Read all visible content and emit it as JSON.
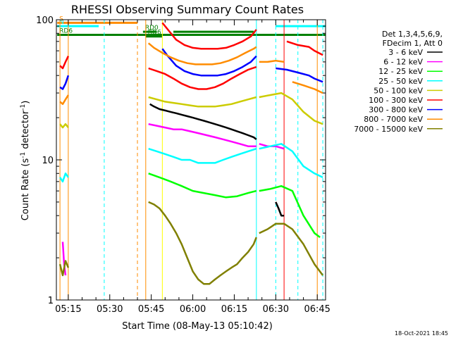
{
  "chart_data": {
    "type": "line",
    "title": "RHESSI Observing Summary Count Rates",
    "xlabel": "Start Time (08-May-13 05:10:42)",
    "ylabel": "Count Rate (s",
    "ylabel_sup": "-1",
    "ylabel_tail": " detector",
    "ylabel_close": ")",
    "timestamp": "18-Oct-2021 18:45",
    "y_scale": "log",
    "ylim": [
      1,
      100
    ],
    "xlim": [
      "05:10:42",
      "06:48:00"
    ],
    "x_ticks": [
      "05:15",
      "05:30",
      "05:45",
      "06:00",
      "06:15",
      "06:30",
      "06:45"
    ],
    "y_ticks": [
      "1",
      "10",
      "100"
    ],
    "legend": {
      "placement": "right",
      "header": [
        "Det 1,3,4,5,6,9,",
        "FDecim 1, Att 0"
      ]
    },
    "series": [
      {
        "name": "3 - 6 keV",
        "color": "#000000",
        "segments": [
          {
            "x": [
              "05:44:30",
              "05:46",
              "05:48",
              "05:50",
              "05:52",
              "05:54",
              "05:56",
              "05:58",
              "06:00",
              "06:02",
              "06:04",
              "06:06",
              "06:08",
              "06:10",
              "06:12",
              "06:14",
              "06:16",
              "06:18",
              "06:20",
              "06:22",
              "06:23"
            ],
            "y": [
              25,
              24,
              23,
              22.5,
              22,
              21.5,
              21,
              20.5,
              20,
              19.5,
              19,
              18.5,
              18,
              17.5,
              17,
              16.5,
              16,
              15.5,
              15,
              14.5,
              14
            ]
          },
          {
            "x": [
              "06:30",
              "06:31",
              "06:32",
              "06:33"
            ],
            "y": [
              5,
              4.5,
              4,
              4
            ]
          }
        ]
      },
      {
        "name": "6 - 12 keV",
        "color": "#ff00ff",
        "segments": [
          {
            "x": [
              "05:13",
              "05:13:30",
              "05:14"
            ],
            "y": [
              2.6,
              1.8,
              1.5
            ]
          },
          {
            "x": [
              "05:44",
              "05:47",
              "05:50",
              "05:53",
              "05:56",
              "05:59",
              "06:02",
              "06:05",
              "06:08",
              "06:11",
              "06:14",
              "06:17",
              "06:20",
              "06:23"
            ],
            "y": [
              18,
              17.5,
              17,
              16.5,
              16.5,
              16,
              15.5,
              15,
              14.5,
              14,
              13.5,
              13,
              12.5,
              12.5
            ]
          },
          {
            "x": [
              "06:24",
              "06:27",
              "06:30",
              "06:33"
            ],
            "y": [
              13,
              12.5,
              12.5,
              12
            ]
          }
        ]
      },
      {
        "name": "12 - 25 keV",
        "color": "#00ff00",
        "segments": [
          {
            "x": [
              "05:44",
              "05:48",
              "05:52",
              "05:56",
              "06:00",
              "06:04",
              "06:08",
              "06:12",
              "06:16",
              "06:20",
              "06:23"
            ],
            "y": [
              8,
              7.5,
              7,
              6.5,
              6,
              5.8,
              5.6,
              5.4,
              5.5,
              5.8,
              6
            ]
          },
          {
            "x": [
              "06:24",
              "06:28",
              "06:32",
              "06:36",
              "06:40",
              "06:44",
              "06:46"
            ],
            "y": [
              6,
              6.2,
              6.5,
              6,
              4,
              3,
              2.8
            ]
          }
        ]
      },
      {
        "name": "25 - 50 keV",
        "color": "#00ffff",
        "segments": [
          {
            "x": [
              "05:12",
              "05:13",
              "05:14",
              "05:15"
            ],
            "y": [
              7.5,
              7,
              8,
              7.5
            ]
          },
          {
            "x": [
              "05:44",
              "05:47",
              "05:50",
              "05:53",
              "05:56",
              "05:59",
              "06:02",
              "06:05",
              "06:08",
              "06:11",
              "06:14",
              "06:17",
              "06:20",
              "06:23"
            ],
            "y": [
              12,
              11.5,
              11,
              10.5,
              10,
              10,
              9.5,
              9.5,
              9.5,
              10,
              10.5,
              11,
              11.5,
              12
            ]
          },
          {
            "x": [
              "06:24",
              "06:28",
              "06:32",
              "06:36",
              "06:40",
              "06:44",
              "06:47"
            ],
            "y": [
              12,
              12.5,
              13,
              11.5,
              9,
              8,
              7.5
            ]
          }
        ]
      },
      {
        "name": "50 - 100 keV",
        "color": "#cccc00",
        "segments": [
          {
            "x": [
              "05:12",
              "05:13",
              "05:14",
              "05:15"
            ],
            "y": [
              18,
              17,
              18,
              17
            ]
          },
          {
            "x": [
              "05:44",
              "05:47",
              "05:50",
              "05:53",
              "05:56",
              "05:59",
              "06:02",
              "06:05",
              "06:08",
              "06:11",
              "06:14",
              "06:17",
              "06:20",
              "06:23"
            ],
            "y": [
              28,
              27,
              26,
              25.5,
              25,
              24.5,
              24,
              24,
              24,
              24.5,
              25,
              26,
              27,
              28
            ]
          },
          {
            "x": [
              "06:24",
              "06:28",
              "06:32",
              "06:36",
              "06:40",
              "06:44",
              "06:47"
            ],
            "y": [
              28,
              29,
              30,
              27,
              22,
              19,
              18
            ]
          }
        ]
      },
      {
        "name": "100 - 300 keV",
        "color": "#ff0000",
        "segments": [
          {
            "x": [
              "05:12",
              "05:13",
              "05:14",
              "05:15"
            ],
            "y": [
              47,
              45,
              50,
              55
            ]
          },
          {
            "x": [
              "05:44",
              "05:47",
              "05:50",
              "05:53",
              "05:56",
              "05:59",
              "06:02",
              "06:05",
              "06:08",
              "06:11",
              "06:14",
              "06:17",
              "06:20",
              "06:23"
            ],
            "y": [
              45,
              43,
              41,
              38,
              35,
              33,
              32,
              32,
              33,
              35,
              38,
              41,
              44,
              46
            ]
          },
          {
            "x": [
              "05:49",
              "05:51",
              "05:54",
              "05:57",
              "06:00",
              "06:03",
              "06:06",
              "06:09",
              "06:12",
              "06:15",
              "06:18",
              "06:21",
              "06:23"
            ],
            "y": [
              95,
              85,
              72,
              66,
              63,
              62,
              62,
              62,
              63,
              66,
              70,
              76,
              85
            ]
          },
          {
            "x": [
              "06:34",
              "06:38",
              "06:42",
              "06:44",
              "06:47"
            ],
            "y": [
              70,
              66,
              64,
              60,
              56
            ]
          }
        ]
      },
      {
        "name": "300 - 800 keV",
        "color": "#0000ff",
        "segments": [
          {
            "x": [
              "05:12",
              "05:13",
              "05:14",
              "05:15"
            ],
            "y": [
              33,
              32,
              35,
              40
            ]
          },
          {
            "x": [
              "05:49",
              "05:51",
              "05:54",
              "05:57",
              "06:00",
              "06:03",
              "06:06",
              "06:09",
              "06:12",
              "06:15",
              "06:18",
              "06:21",
              "06:23"
            ],
            "y": [
              62,
              55,
              47,
              43,
              41,
              40,
              40,
              40,
              41,
              43,
              46,
              50,
              55
            ]
          },
          {
            "x": [
              "06:30",
              "06:34",
              "06:38",
              "06:42",
              "06:44",
              "06:47"
            ],
            "y": [
              45,
              44,
              42,
              40,
              38,
              36
            ]
          }
        ]
      },
      {
        "name": "800 - 7000 keV",
        "color": "#ff8c00",
        "segments": [
          {
            "x": [
              "05:12",
              "05:13",
              "05:14",
              "05:15"
            ],
            "y": [
              26,
              25,
              27,
              29
            ]
          },
          {
            "x": [
              "05:44",
              "05:46",
              "05:49",
              "05:52",
              "05:55",
              "05:58",
              "06:01",
              "06:04",
              "06:07",
              "06:10",
              "06:13",
              "06:16",
              "06:19",
              "06:22",
              "06:23"
            ],
            "y": [
              68,
              63,
              58,
              54,
              51,
              49,
              48,
              48,
              48,
              49,
              51,
              54,
              58,
              62,
              64
            ]
          },
          {
            "x": [
              "06:24",
              "06:27",
              "06:30",
              "06:33"
            ],
            "y": [
              50,
              50,
              51,
              50
            ]
          },
          {
            "x": [
              "06:36",
              "06:40",
              "06:44",
              "06:47"
            ],
            "y": [
              36,
              34,
              32,
              30
            ]
          }
        ]
      },
      {
        "name": "7000 - 15000 keV",
        "color": "#808000",
        "segments": [
          {
            "x": [
              "05:12",
              "05:13",
              "05:14",
              "05:15"
            ],
            "y": [
              1.8,
              1.5,
              1.9,
              1.7
            ]
          },
          {
            "x": [
              "05:44",
              "05:46",
              "05:48",
              "05:50",
              "05:52",
              "05:54",
              "05:56",
              "05:58",
              "06:00",
              "06:02",
              "06:04",
              "06:06",
              "06:08",
              "06:10",
              "06:12",
              "06:14",
              "06:16",
              "06:18",
              "06:20",
              "06:22",
              "06:23"
            ],
            "y": [
              5,
              4.8,
              4.5,
              4,
              3.5,
              3,
              2.5,
              2,
              1.6,
              1.4,
              1.3,
              1.3,
              1.4,
              1.5,
              1.6,
              1.7,
              1.8,
              2,
              2.2,
              2.5,
              2.8
            ]
          },
          {
            "x": [
              "06:24",
              "06:27",
              "06:30",
              "06:33",
              "06:36",
              "06:40",
              "06:44",
              "06:47"
            ],
            "y": [
              3,
              3.2,
              3.5,
              3.5,
              3.2,
              2.5,
              1.8,
              1.5
            ]
          }
        ]
      }
    ],
    "flag_bars": [
      {
        "label": "S",
        "color": "#ff8c00",
        "y": 95,
        "x": [
          [
            "05:11",
            "05:40"
          ]
        ]
      },
      {
        "label": "N",
        "color": "#00ffff",
        "y": 90,
        "x": [
          [
            "05:11",
            "05:26"
          ],
          [
            "06:30",
            "06:48"
          ]
        ]
      },
      {
        "label": "RD6",
        "color": "#008000",
        "y": 78,
        "x": [
          [
            "05:11",
            "06:48"
          ]
        ]
      },
      {
        "label": "RD0",
        "color": "#008000",
        "y": 82,
        "x": [
          [
            "05:42",
            "05:47"
          ],
          [
            "05:53",
            "06:22"
          ]
        ]
      },
      {
        "label": "RD6",
        "color": "#008000",
        "y": 76,
        "x": [
          [
            "05:43",
            "05:49"
          ]
        ]
      }
    ],
    "vlines": [
      {
        "x": "05:12",
        "color": "#ff8c00",
        "style": "solid"
      },
      {
        "x": "05:15",
        "color": "#ff8c00",
        "style": "solid"
      },
      {
        "x": "05:28",
        "color": "#00ffff",
        "style": "dashed"
      },
      {
        "x": "05:40",
        "color": "#ff8c00",
        "style": "dashed"
      },
      {
        "x": "05:43",
        "color": "#ff8c00",
        "style": "solid"
      },
      {
        "x": "05:49",
        "color": "#ffff00",
        "style": "solid"
      },
      {
        "x": "06:23",
        "color": "#00ffff",
        "style": "solid"
      },
      {
        "x": "06:30",
        "color": "#00ffff",
        "style": "dashed"
      },
      {
        "x": "06:33",
        "color": "#ff0000",
        "style": "solid"
      },
      {
        "x": "06:38",
        "color": "#00ffff",
        "style": "dashed"
      },
      {
        "x": "06:45",
        "color": "#ff8c00",
        "style": "solid"
      },
      {
        "x": "06:47",
        "color": "#00ffff",
        "style": "dashed"
      }
    ]
  }
}
